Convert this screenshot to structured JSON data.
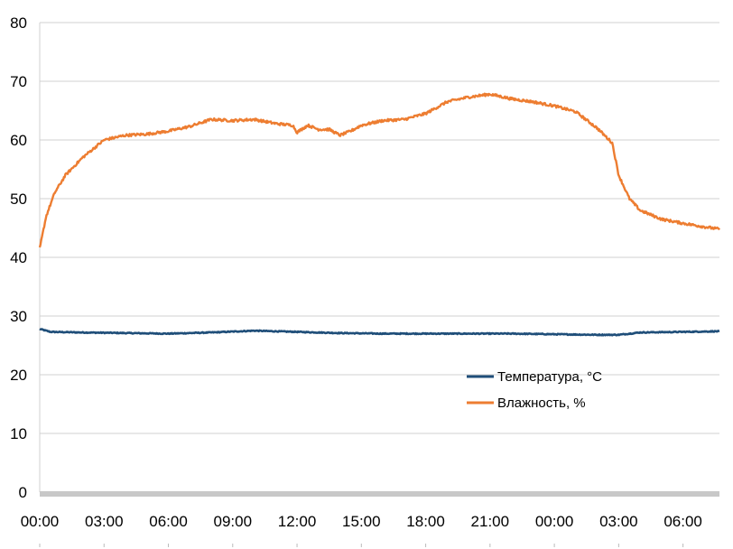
{
  "chart_data": {
    "type": "line",
    "title": "",
    "xlabel": "",
    "ylabel": "",
    "ylim": [
      0,
      80
    ],
    "y_ticks": [
      "0",
      "10",
      "20",
      "30",
      "40",
      "50",
      "60",
      "70",
      "80"
    ],
    "x_tick_labels": [
      "00:00",
      "03:00",
      "06:00",
      "09:00",
      "12:00",
      "15:00",
      "18:00",
      "21:00",
      "00:00",
      "03:00",
      "06:00"
    ],
    "x_range_hours": [
      0,
      31.7
    ],
    "grid": "horizontal",
    "legend_position": "lower-right inside plot",
    "series": [
      {
        "name": "Температура, °C",
        "color": "#1f4e79",
        "x_hours": [
          0,
          0.5,
          2,
          4,
          6,
          8,
          10,
          12,
          14,
          16,
          18,
          20,
          22,
          24,
          26,
          27,
          28,
          30,
          31.7
        ],
        "values": [
          27.8,
          27.3,
          27.2,
          27.1,
          27.0,
          27.2,
          27.5,
          27.3,
          27.1,
          27.0,
          27.0,
          27.0,
          27.0,
          26.9,
          26.8,
          26.8,
          27.2,
          27.3,
          27.4
        ]
      },
      {
        "name": "Влажность, %",
        "color": "#ed7d31",
        "x_hours": [
          0,
          0.3,
          0.7,
          1.2,
          2,
          3,
          4,
          5,
          6,
          7,
          8,
          9,
          10,
          11,
          11.8,
          12,
          12.5,
          13,
          13.5,
          14,
          14.5,
          15,
          16,
          17,
          18,
          19,
          20,
          21,
          22,
          23,
          24,
          25,
          26,
          26.7,
          27,
          27.5,
          28,
          29,
          30,
          31,
          31.7
        ],
        "values": [
          41.5,
          47,
          51,
          54,
          57,
          60,
          60.8,
          61,
          61.5,
          62.3,
          63.5,
          63.3,
          63.5,
          62.8,
          62.5,
          61.3,
          62.5,
          61.8,
          61.8,
          60.8,
          61.5,
          62.5,
          63.3,
          63.5,
          64.5,
          66.5,
          67.3,
          67.8,
          67,
          66.5,
          65.8,
          64.8,
          62,
          59.5,
          54,
          50,
          48,
          46.5,
          45.8,
          45.2,
          44.8
        ]
      }
    ]
  }
}
